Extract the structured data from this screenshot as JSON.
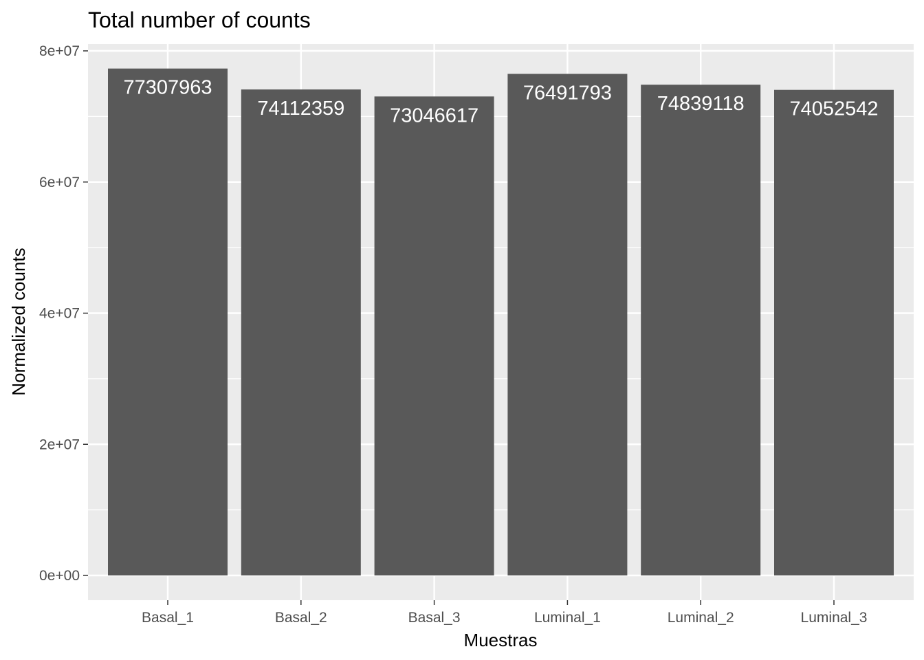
{
  "chart_data": {
    "type": "bar",
    "title": "Total number of counts",
    "xlabel": "Muestras",
    "ylabel": "Normalized counts",
    "categories": [
      "Basal_1",
      "Basal_2",
      "Basal_3",
      "Luminal_1",
      "Luminal_2",
      "Luminal_3"
    ],
    "values": [
      77307963,
      74112359,
      73046617,
      76491793,
      74839118,
      74052542
    ],
    "data_labels": [
      "77307963",
      "74112359",
      "73046617",
      "76491793",
      "74839118",
      "74052542"
    ],
    "ylim": [
      0,
      80000000
    ],
    "y_ticks": [
      0,
      20000000,
      40000000,
      60000000,
      80000000
    ],
    "y_tick_labels": [
      "0e+00",
      "2e+07",
      "4e+07",
      "6e+07",
      "8e+07"
    ],
    "grid": true,
    "legend": "none",
    "colors": {
      "bar": "#595959",
      "panel_background": "#ebebeb",
      "grid": "#ffffff",
      "bar_label": "#ffffff"
    }
  }
}
